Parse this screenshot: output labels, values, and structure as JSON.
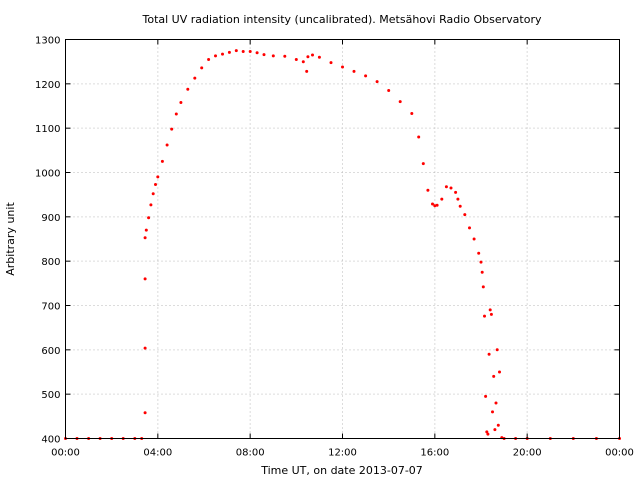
{
  "chart_data": {
    "type": "scatter",
    "title": "Total UV radiation intensity (uncalibrated). Metsähovi Radio Observatory",
    "xlabel": "Time UT, on date 2013-07-07",
    "ylabel": "Arbitrary unit",
    "xlim": [
      0,
      24
    ],
    "ylim": [
      400,
      1300
    ],
    "xticks": [
      {
        "value": 0,
        "label": "00:00"
      },
      {
        "value": 4,
        "label": "04:00"
      },
      {
        "value": 8,
        "label": "08:00"
      },
      {
        "value": 12,
        "label": "12:00"
      },
      {
        "value": 16,
        "label": "16:00"
      },
      {
        "value": 20,
        "label": "20:00"
      },
      {
        "value": 24,
        "label": "00:00"
      }
    ],
    "yticks": [
      {
        "value": 400,
        "label": "400"
      },
      {
        "value": 500,
        "label": "500"
      },
      {
        "value": 600,
        "label": "600"
      },
      {
        "value": 700,
        "label": "700"
      },
      {
        "value": 800,
        "label": "800"
      },
      {
        "value": 900,
        "label": "900"
      },
      {
        "value": 1000,
        "label": "1000"
      },
      {
        "value": 1100,
        "label": "1100"
      },
      {
        "value": 1200,
        "label": "1200"
      },
      {
        "value": 1300,
        "label": "1300"
      }
    ],
    "grid": true,
    "marker_color": "#ff0000",
    "series": [
      {
        "x": [
          0.0,
          0.5,
          1.0,
          1.5,
          2.0,
          2.5,
          3.0,
          3.3,
          3.45,
          3.45,
          3.45,
          3.45,
          3.5,
          3.6,
          3.7,
          3.8,
          3.9,
          4.0,
          4.2,
          4.4,
          4.6,
          4.8,
          5.0,
          5.3,
          5.6,
          5.9,
          6.2,
          6.5,
          6.8,
          7.1,
          7.4,
          7.7,
          8.0,
          8.3,
          8.6,
          9.0,
          9.5,
          10.0,
          10.3,
          10.45,
          10.5,
          10.7,
          11.0,
          11.5,
          12.0,
          12.5,
          13.0,
          13.5,
          14.0,
          14.5,
          15.0,
          15.3,
          15.5,
          15.7,
          15.9,
          16.0,
          16.1,
          16.3,
          16.5,
          16.7,
          16.9,
          17.0,
          17.1,
          17.3,
          17.5,
          17.7,
          17.9,
          18.0,
          18.05,
          18.1,
          18.15,
          18.2,
          18.25,
          18.3,
          18.35,
          18.4,
          18.45,
          18.5,
          18.55,
          18.6,
          18.65,
          18.7,
          18.75,
          18.8,
          18.9,
          19.0,
          19.5,
          20.0,
          21.0,
          22.0,
          23.0,
          24.0
        ],
        "y": [
          400,
          400,
          400,
          400,
          400,
          400,
          400,
          400,
          458,
          604,
          760,
          853,
          870,
          898,
          927,
          952,
          973,
          990,
          1025,
          1062,
          1098,
          1132,
          1158,
          1188,
          1213,
          1236,
          1255,
          1263,
          1267,
          1271,
          1275,
          1273,
          1273,
          1270,
          1266,
          1263,
          1262,
          1255,
          1250,
          1228,
          1261,
          1265,
          1260,
          1248,
          1238,
          1228,
          1218,
          1205,
          1185,
          1160,
          1133,
          1080,
          1020,
          960,
          929,
          925,
          926,
          940,
          968,
          965,
          955,
          940,
          924,
          905,
          875,
          850,
          818,
          798,
          775,
          742,
          676,
          495,
          415,
          410,
          590,
          690,
          680,
          460,
          540,
          420,
          480,
          600,
          430,
          550,
          402,
          400,
          400,
          400,
          400,
          400,
          400,
          400
        ]
      }
    ]
  }
}
